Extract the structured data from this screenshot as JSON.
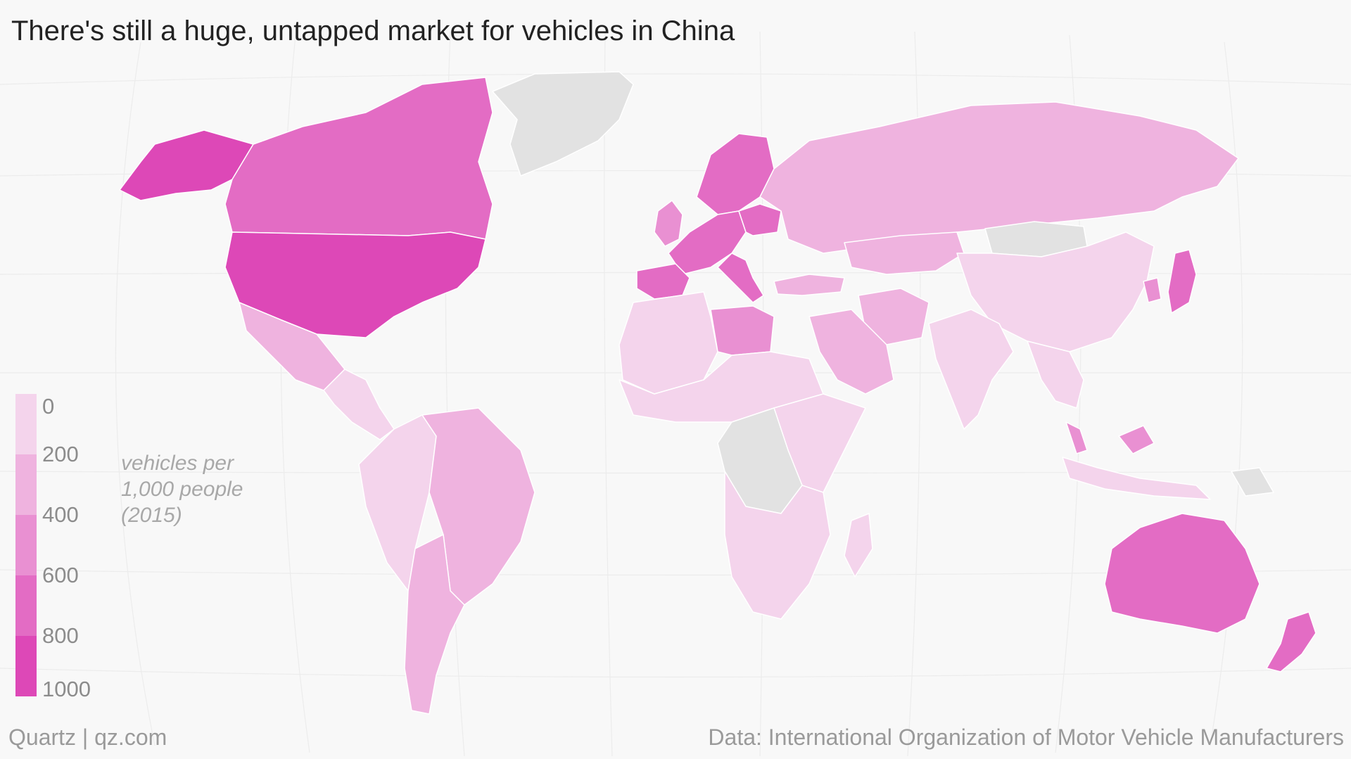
{
  "title": "There's still a huge, untapped market for vehicles in China",
  "unit_lines": [
    "vehicles per",
    "1,000 people",
    "(2015)"
  ],
  "legend": {
    "stops": [
      "0",
      "200",
      "400",
      "600",
      "800",
      "1000"
    ],
    "colors": [
      "#f4d4ec",
      "#efb3df",
      "#e990d2",
      "#e36cc4",
      "#dd48b7",
      "#dd3bb3"
    ]
  },
  "footer": {
    "source_brand": "Quartz | qz.com",
    "data_credit": "Data: International Organization of Motor Vehicle Manufacturers"
  },
  "colors": {
    "no_data": "#e2e2e2",
    "border": "#ffffff",
    "background": "#f8f8f8"
  },
  "map_data": {
    "regions": [
      {
        "name": "United States",
        "value": 900
      },
      {
        "name": "Alaska",
        "value": 900
      },
      {
        "name": "Canada",
        "value": 700
      },
      {
        "name": "Greenland",
        "value": null
      },
      {
        "name": "Mexico",
        "value": 350
      },
      {
        "name": "Central America",
        "value": 150
      },
      {
        "name": "Brazil",
        "value": 300
      },
      {
        "name": "Argentina",
        "value": 350
      },
      {
        "name": "Andes",
        "value": 150
      },
      {
        "name": "Europe West",
        "value": 600
      },
      {
        "name": "Iberia",
        "value": 600
      },
      {
        "name": "Italy",
        "value": 700
      },
      {
        "name": "Poland",
        "value": 700
      },
      {
        "name": "Nordics",
        "value": 600
      },
      {
        "name": "UK",
        "value": 550
      },
      {
        "name": "Russia",
        "value": 350
      },
      {
        "name": "Kazakhstan",
        "value": 300
      },
      {
        "name": "Mongolia",
        "value": null
      },
      {
        "name": "China",
        "value": 100
      },
      {
        "name": "India",
        "value": 50
      },
      {
        "name": "Japan",
        "value": 700
      },
      {
        "name": "South Korea",
        "value": 500
      },
      {
        "name": "Saudi Arabia",
        "value": 350
      },
      {
        "name": "Iran",
        "value": 200
      },
      {
        "name": "Turkey",
        "value": 250
      },
      {
        "name": "Libya",
        "value": 500
      },
      {
        "name": "North Africa",
        "value": 100
      },
      {
        "name": "West Africa",
        "value": 50
      },
      {
        "name": "Central Africa",
        "value": null
      },
      {
        "name": "East Africa",
        "value": 50
      },
      {
        "name": "Southern Africa",
        "value": 150
      },
      {
        "name": "Madagascar",
        "value": 50
      },
      {
        "name": "Southeast Asia",
        "value": 150
      },
      {
        "name": "Malaysia",
        "value": 450
      },
      {
        "name": "Indonesia",
        "value": 100
      },
      {
        "name": "Papua New Guinea",
        "value": null
      },
      {
        "name": "Australia",
        "value": 700
      },
      {
        "name": "New Zealand",
        "value": 750
      }
    ]
  }
}
